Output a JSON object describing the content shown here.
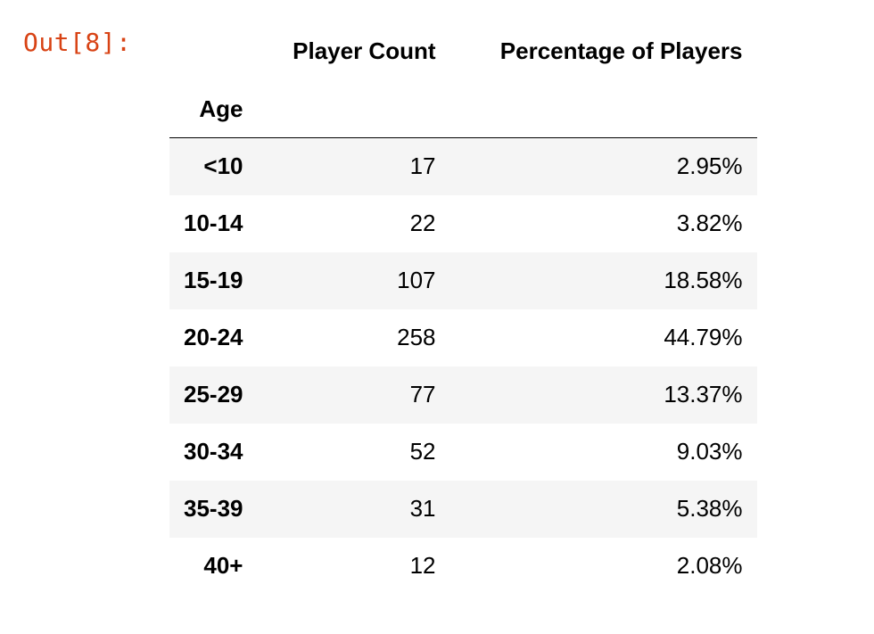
{
  "cell": {
    "prompt": "Out[8]:"
  },
  "table": {
    "columns": [
      "Player Count",
      "Percentage of Players"
    ],
    "index_name": "Age",
    "rows": [
      {
        "age": "<10",
        "count": "17",
        "pct": "2.95%"
      },
      {
        "age": "10-14",
        "count": "22",
        "pct": "3.82%"
      },
      {
        "age": "15-19",
        "count": "107",
        "pct": "18.58%"
      },
      {
        "age": "20-24",
        "count": "258",
        "pct": "44.79%"
      },
      {
        "age": "25-29",
        "count": "77",
        "pct": "13.37%"
      },
      {
        "age": "30-34",
        "count": "52",
        "pct": "9.03%"
      },
      {
        "age": "35-39",
        "count": "31",
        "pct": "5.38%"
      },
      {
        "age": "40+",
        "count": "12",
        "pct": "2.08%"
      }
    ]
  },
  "colors": {
    "prompt": "#d84315",
    "row_stripe": "#f5f5f5",
    "text": "#000000"
  }
}
